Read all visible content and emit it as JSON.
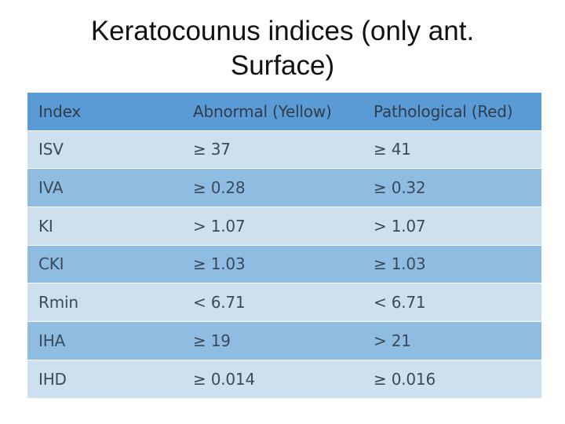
{
  "slide": {
    "title_line1": "Keratocounus indices (only ant.",
    "title_line2": "Surface)"
  },
  "table": {
    "headers": [
      "Index",
      "Abnormal (Yellow)",
      "Pathological (Red)"
    ],
    "rows": [
      [
        "ISV",
        "≥ 37",
        "≥ 41"
      ],
      [
        "IVA",
        "≥ 0.28",
        "≥ 0.32"
      ],
      [
        "KI",
        "> 1.07",
        "> 1.07"
      ],
      [
        "CKI",
        "≥ 1.03",
        "≥ 1.03"
      ],
      [
        "Rmin",
        "< 6.71",
        "< 6.71"
      ],
      [
        "IHA",
        "≥ 19",
        "> 21"
      ],
      [
        "IHD",
        "≥ 0.014",
        "≥ 0.016"
      ]
    ]
  },
  "colors": {
    "header_bg": "#5a9bd5",
    "row_light": "#cde0f0",
    "row_dark": "#8fbde2"
  }
}
